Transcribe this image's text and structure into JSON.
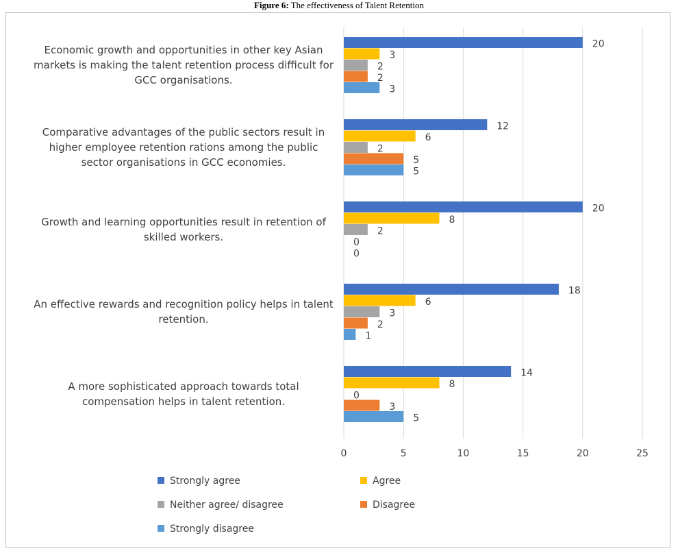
{
  "chart_data": {
    "type": "bar",
    "orientation": "horizontal",
    "figure_label": "Figure 6:",
    "title": "The effectiveness of Talent Retention",
    "categories": [
      "Economic growth and opportunities in other key Asian markets is making the talent retention process difficult for GCC organisations.",
      "Comparative advantages of the public sectors result in higher employee retention rations among the public sector organisations in GCC economies.",
      "Growth and learning opportunities result in retention of skilled workers.",
      "An effective rewards and recognition policy helps in talent retention.",
      "A more sophisticated approach towards total compensation helps in talent retention."
    ],
    "series": [
      {
        "name": "Strongly agree",
        "color": "#4472c4",
        "values": [
          20,
          12,
          20,
          18,
          14
        ]
      },
      {
        "name": "Agree",
        "color": "#ffc000",
        "values": [
          3,
          6,
          8,
          6,
          8
        ]
      },
      {
        "name": "Neither agree/ disagree",
        "color": "#a5a5a5",
        "values": [
          2,
          2,
          2,
          3,
          0
        ]
      },
      {
        "name": "Disagree",
        "color": "#ed7d31",
        "values": [
          2,
          5,
          0,
          2,
          3
        ]
      },
      {
        "name": "Strongly disagree",
        "color": "#5b9bd5",
        "values": [
          3,
          5,
          0,
          1,
          5
        ]
      }
    ],
    "xlim": [
      0,
      25
    ],
    "xticks": [
      0,
      5,
      10,
      15,
      20,
      25
    ],
    "grid": true
  }
}
